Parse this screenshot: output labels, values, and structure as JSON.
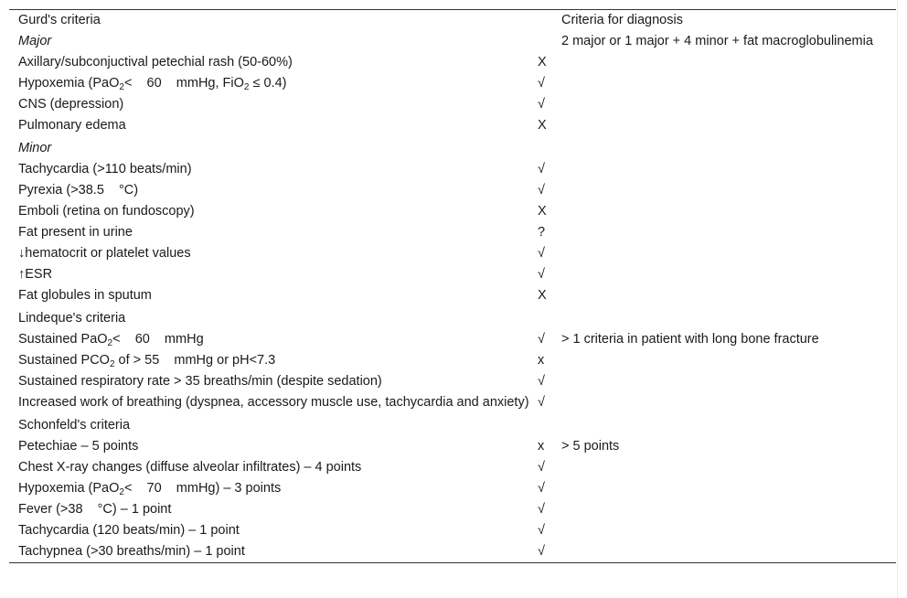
{
  "table": {
    "rows": [
      {
        "label": [
          {
            "t": "Gurd's criteria"
          }
        ],
        "mark": "",
        "diag": "Criteria for diagnosis"
      },
      {
        "label": [
          {
            "t": "Major"
          }
        ],
        "italic": true,
        "mark": "",
        "diag": "2 major or 1 major + 4 minor + fat macroglobulinemia",
        "diag_rowspan": 2
      },
      {
        "label": [
          {
            "t": "Axillary/subconjuctival petechial rash (50-60%)"
          }
        ],
        "mark": "X",
        "skip_diag": true
      },
      {
        "label": [
          {
            "t": "Hypoxemia (PaO"
          },
          {
            "sub": "2"
          },
          {
            "t": "<    60    mmHg, FiO"
          },
          {
            "sub": "2"
          },
          {
            "t": " ≤ 0.4)"
          }
        ],
        "mark": "√",
        "diag": ""
      },
      {
        "label": [
          {
            "t": "CNS (depression)"
          }
        ],
        "mark": "√",
        "diag": ""
      },
      {
        "label": [
          {
            "t": "Pulmonary edema"
          }
        ],
        "mark": "X",
        "diag": ""
      },
      {
        "label": [
          {
            "t": "Minor"
          }
        ],
        "italic": true,
        "section": true,
        "mark": "",
        "diag": ""
      },
      {
        "label": [
          {
            "t": "Tachycardia (>110 beats/min)"
          }
        ],
        "mark": "√",
        "diag": ""
      },
      {
        "label": [
          {
            "t": "Pyrexia (>38.5    °C)"
          }
        ],
        "mark": "√",
        "diag": ""
      },
      {
        "label": [
          {
            "t": "Emboli (retina on fundoscopy)"
          }
        ],
        "mark": "X",
        "diag": ""
      },
      {
        "label": [
          {
            "t": "Fat present in urine"
          }
        ],
        "mark": "?",
        "diag": ""
      },
      {
        "label": [
          {
            "t": "↓hematocrit or platelet values"
          }
        ],
        "mark": "√",
        "diag": ""
      },
      {
        "label": [
          {
            "t": "↑ESR"
          }
        ],
        "mark": "√",
        "diag": ""
      },
      {
        "label": [
          {
            "t": "Fat globules in sputum"
          }
        ],
        "mark": "X",
        "diag": ""
      },
      {
        "label": [
          {
            "t": "Lindeque's criteria"
          }
        ],
        "section": true,
        "mark": "",
        "diag": ""
      },
      {
        "label": [
          {
            "t": "Sustained PaO"
          },
          {
            "sub": "2"
          },
          {
            "t": "<    60    mmHg"
          }
        ],
        "mark": "√",
        "diag": "> 1 criteria in patient with long bone fracture"
      },
      {
        "label": [
          {
            "t": "Sustained PCO"
          },
          {
            "sub": "2"
          },
          {
            "t": " of > 55    mmHg or pH<7.3"
          }
        ],
        "mark": "x",
        "diag": ""
      },
      {
        "label": [
          {
            "t": "Sustained respiratory rate > 35 breaths/min (despite sedation)"
          }
        ],
        "mark": "√",
        "diag": ""
      },
      {
        "label": [
          {
            "t": "Increased work of breathing (dyspnea, accessory muscle use, tachycardia and anxiety)"
          }
        ],
        "mark": "√",
        "diag": ""
      },
      {
        "label": [
          {
            "t": "Schonfeld's criteria"
          }
        ],
        "section": true,
        "mark": "",
        "diag": ""
      },
      {
        "label": [
          {
            "t": "Petechiae – 5 points"
          }
        ],
        "mark": "x",
        "diag": "> 5 points"
      },
      {
        "label": [
          {
            "t": "Chest X-ray changes (diffuse alveolar infiltrates) – 4 points"
          }
        ],
        "mark": "√",
        "diag": ""
      },
      {
        "label": [
          {
            "t": "Hypoxemia (PaO"
          },
          {
            "sub": "2"
          },
          {
            "t": "<    70    mmHg) – 3 points"
          }
        ],
        "mark": "√",
        "diag": ""
      },
      {
        "label": [
          {
            "t": "Fever (>38    °C) – 1 point"
          }
        ],
        "mark": "√",
        "diag": ""
      },
      {
        "label": [
          {
            "t": "Tachycardia (120 beats/min) – 1 point"
          }
        ],
        "mark": "√",
        "diag": ""
      },
      {
        "label": [
          {
            "t": "Tachypnea (>30 breaths/min) – 1 point"
          }
        ],
        "mark": "√",
        "diag": ""
      }
    ]
  }
}
